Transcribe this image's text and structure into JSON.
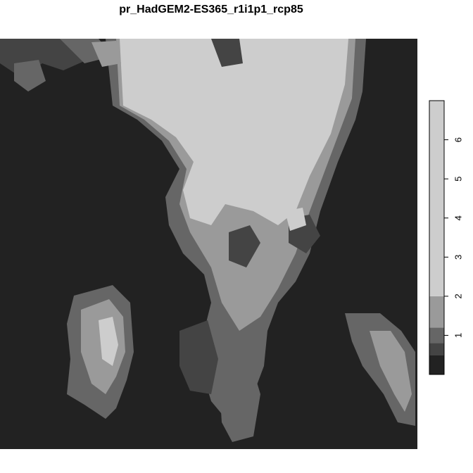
{
  "title": "pr_HadGEM2-ES365_r1i1p1_rcp85",
  "chart_data": {
    "type": "heatmap",
    "title": "pr_HadGEM2-ES365_r1i1p1_rcp85",
    "legend": {
      "position": "right",
      "orientation": "vertical",
      "range": [
        0,
        7
      ],
      "breaks": [
        0,
        0.5,
        0.8,
        1.2,
        2.0,
        7.0
      ],
      "colors": [
        "#222222",
        "#444444",
        "#666666",
        "#9a9a9a",
        "#cdcdcd"
      ],
      "ticks": [
        1,
        2,
        3,
        4,
        5,
        6
      ],
      "tick_labels": [
        "1",
        "2",
        "3",
        "4",
        "5",
        "6"
      ]
    },
    "palette": {
      "background": "#222222",
      "low": "#444444",
      "mid": "#666666",
      "high": "#9a9a9a",
      "highest": "#cdcdcd"
    }
  }
}
